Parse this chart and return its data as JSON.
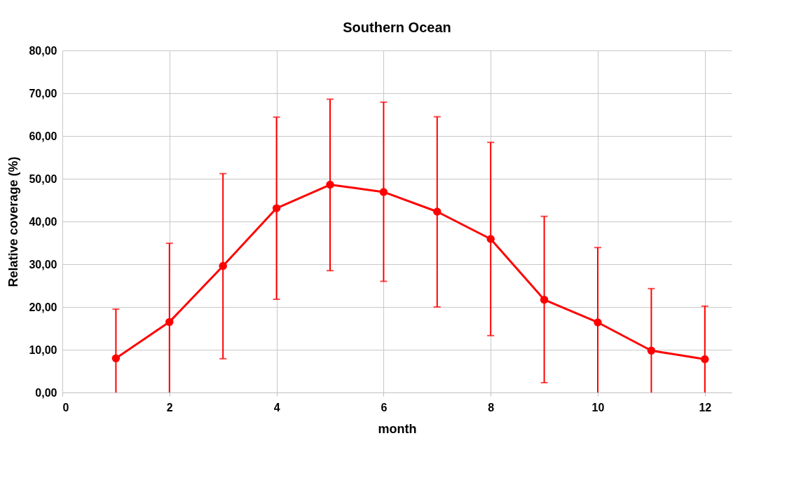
{
  "chart_data": {
    "type": "line",
    "title": "Southern Ocean",
    "xlabel": "month",
    "ylabel": "Relative coverage (%)",
    "x": [
      1,
      2,
      3,
      4,
      5,
      6,
      7,
      8,
      9,
      10,
      11,
      12
    ],
    "series": [
      {
        "color": "#ff0000",
        "values": [
          8.0,
          16.5,
          29.6,
          43.1,
          48.6,
          46.9,
          42.3,
          35.9,
          21.7,
          16.4,
          9.8,
          7.8
        ],
        "errors": [
          [
            0,
            19.5
          ],
          [
            0,
            34.9
          ],
          [
            7.9,
            51.2
          ],
          [
            21.8,
            64.4
          ],
          [
            28.5,
            68.6
          ],
          [
            26.0,
            67.9
          ],
          [
            20.0,
            64.5
          ],
          [
            13.3,
            58.5
          ],
          [
            2.3,
            41.2
          ],
          [
            0,
            33.9
          ],
          [
            0,
            24.3
          ],
          [
            0,
            20.2
          ]
        ]
      }
    ],
    "xlim": [
      0,
      12.5
    ],
    "xticks": [
      0,
      2,
      4,
      6,
      8,
      10,
      12
    ],
    "ylim": [
      0,
      80
    ],
    "yticks": [
      {
        "value": 0,
        "label": "0,00"
      },
      {
        "value": 10,
        "label": "10,00"
      },
      {
        "value": 20,
        "label": "20,00"
      },
      {
        "value": 30,
        "label": "30,00"
      },
      {
        "value": 40,
        "label": "40,00"
      },
      {
        "value": 50,
        "label": "50,00"
      },
      {
        "value": 60,
        "label": "60,00"
      },
      {
        "value": 70,
        "label": "70,00"
      },
      {
        "value": 80,
        "label": "80,00"
      }
    ],
    "grid": true,
    "marker": "circle",
    "line_style": "solid"
  }
}
